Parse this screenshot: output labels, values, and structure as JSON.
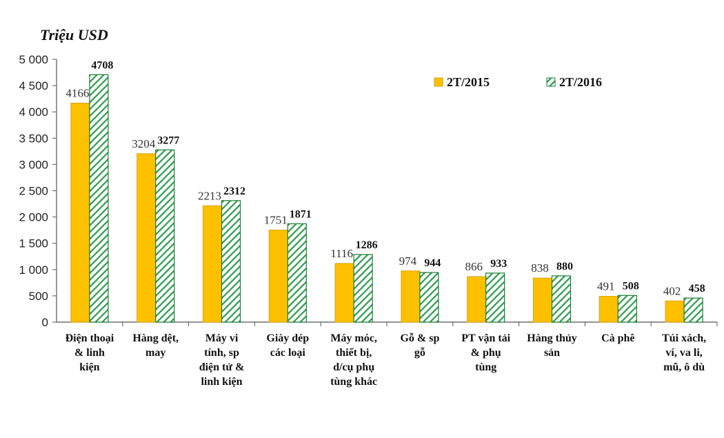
{
  "chart_data": {
    "type": "bar",
    "ylabel": "Triệu USD",
    "ylim": [
      0,
      5000
    ],
    "y_ticks": [
      "0",
      "500",
      "1 000",
      "1 500",
      "2 000",
      "2 500",
      "3 000",
      "3 500",
      "4 000",
      "4 500",
      "5 000"
    ],
    "y_tick_values": [
      0,
      500,
      1000,
      1500,
      2000,
      2500,
      3000,
      3500,
      4000,
      4500,
      5000
    ],
    "categories": [
      [
        "Điện thoại",
        "& linh",
        "kiện"
      ],
      [
        "Hàng dệt,",
        "may"
      ],
      [
        "Máy vi",
        "tính, sp",
        "điện tử &",
        "linh kiện"
      ],
      [
        "Giày dép",
        "các loại"
      ],
      [
        "Máy móc,",
        "thiết bị,",
        "d/cụ phụ",
        "tùng khác"
      ],
      [
        "Gỗ & sp",
        "gỗ"
      ],
      [
        "PT vận tải",
        "& phụ",
        "tùng"
      ],
      [
        "Hàng thủy",
        "sản"
      ],
      [
        "Cà phê"
      ],
      [
        "Túi xách,",
        "ví, va li,",
        "mũ, ô dù"
      ]
    ],
    "series": [
      {
        "name": "2T/2015",
        "values": [
          4166,
          3204,
          2213,
          1751,
          1116,
          974,
          866,
          838,
          491,
          402
        ],
        "labels": [
          "4166",
          "3204",
          "2213",
          "1751",
          "1116",
          "974",
          "866",
          "838",
          "491",
          "402"
        ]
      },
      {
        "name": "2T/2016",
        "values": [
          4708,
          3277,
          2312,
          1871,
          1286,
          944,
          933,
          880,
          508,
          458
        ],
        "labels": [
          "4708",
          "3277",
          "2312",
          "1871",
          "1286",
          "944",
          "933",
          "880",
          "508",
          "458"
        ]
      }
    ],
    "legend_position": "top-right",
    "grid": false
  },
  "colors": {
    "series1_fill": "#FFC000",
    "series1_stroke": "#D9A000",
    "series2_fill": "#FFFFFF",
    "series2_hatch": "#2E9E4F",
    "series2_stroke": "#1B7A35",
    "axis": "#555555"
  }
}
